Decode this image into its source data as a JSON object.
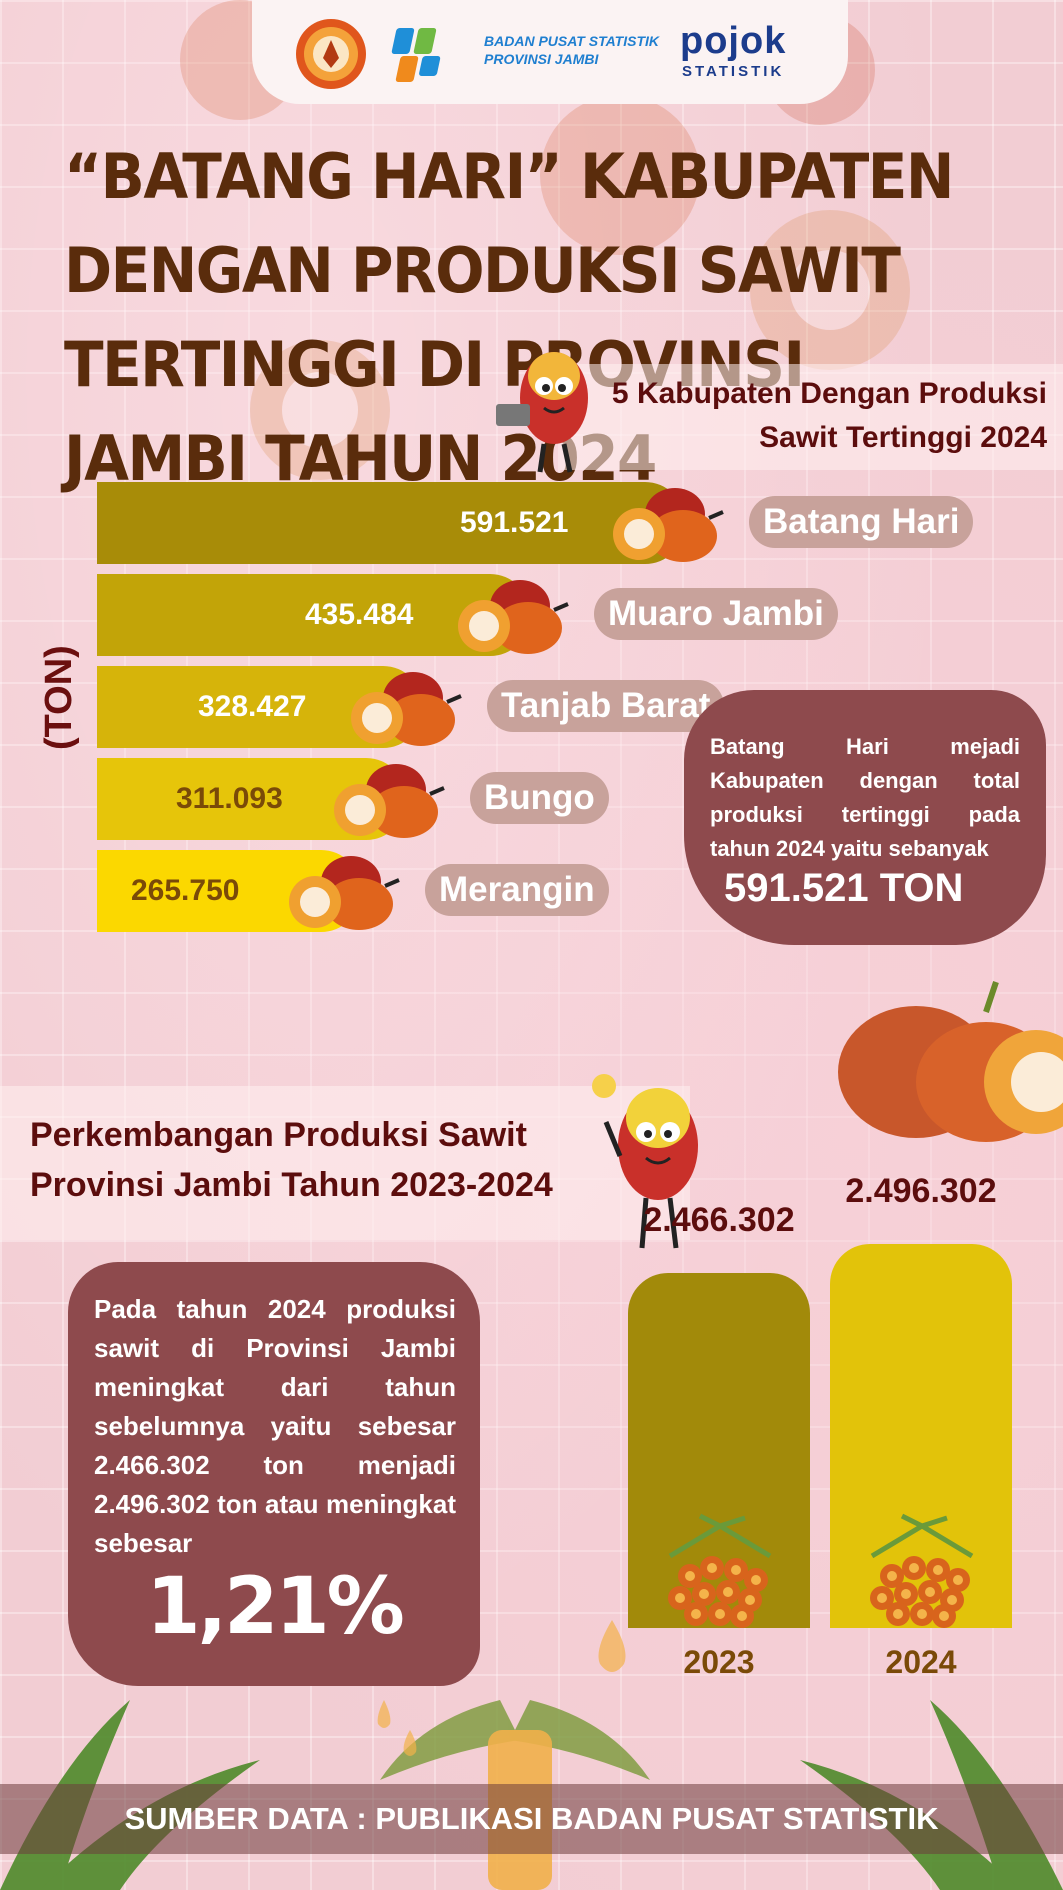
{
  "header": {
    "logo1": "university-seal",
    "logo2_line1": "BADAN PUSAT STATISTIK",
    "logo2_line2": "PROVINSI JAMBI",
    "logo3_word": "pojok",
    "logo3_sub": "STATISTIK"
  },
  "title": "“BATANG HARI” KABUPATEN DENGAN PRODUKSI SAWIT TERTINGGI DI PROVINSI JAMBI TAHUN 2024",
  "colors": {
    "title": "#5a2c0c",
    "section_title": "#5c0d0d",
    "callout": "#8e4a4d",
    "bar_dark": "#a88c08",
    "bar_light": "#fbd800"
  },
  "chart_data": [
    {
      "type": "bar",
      "orientation": "horizontal",
      "title": "5 Kabupaten Dengan Produksi Sawit Tertinggi 2024",
      "ylabel": "(TON)",
      "categories": [
        "Batang Hari",
        "Muaro Jambi",
        "Tanjab Barat",
        "Bungo",
        "Merangin"
      ],
      "values": [
        591521,
        435484,
        328427,
        311093,
        265750
      ],
      "value_labels": [
        "591.521",
        "435.484",
        "328.427",
        "311.093",
        "265.750"
      ]
    },
    {
      "type": "bar",
      "orientation": "vertical",
      "title": "Perkembangan Produksi Sawit Provinsi Jambi Tahun 2023-2024",
      "categories": [
        "2023",
        "2024"
      ],
      "values": [
        2466302,
        2496302
      ],
      "value_labels": [
        "2.466.302",
        "2.496.302"
      ]
    }
  ],
  "callout1": {
    "text": "Batang Hari mejadi Kabupaten dengan total produksi tertinggi pada tahun 2024 yaitu sebanyak",
    "highlight": "591.521 TON"
  },
  "callout2": {
    "text": "Pada tahun 2024 produksi sawit di Provinsi Jambi meningkat dari tahun sebelumnya yaitu sebesar 2.466.302 ton menjadi 2.496.302 ton atau meningkat sebesar",
    "highlight": "1,21%"
  },
  "footer": "SUMBER DATA : PUBLIKASI BADAN PUSAT STATISTIK"
}
